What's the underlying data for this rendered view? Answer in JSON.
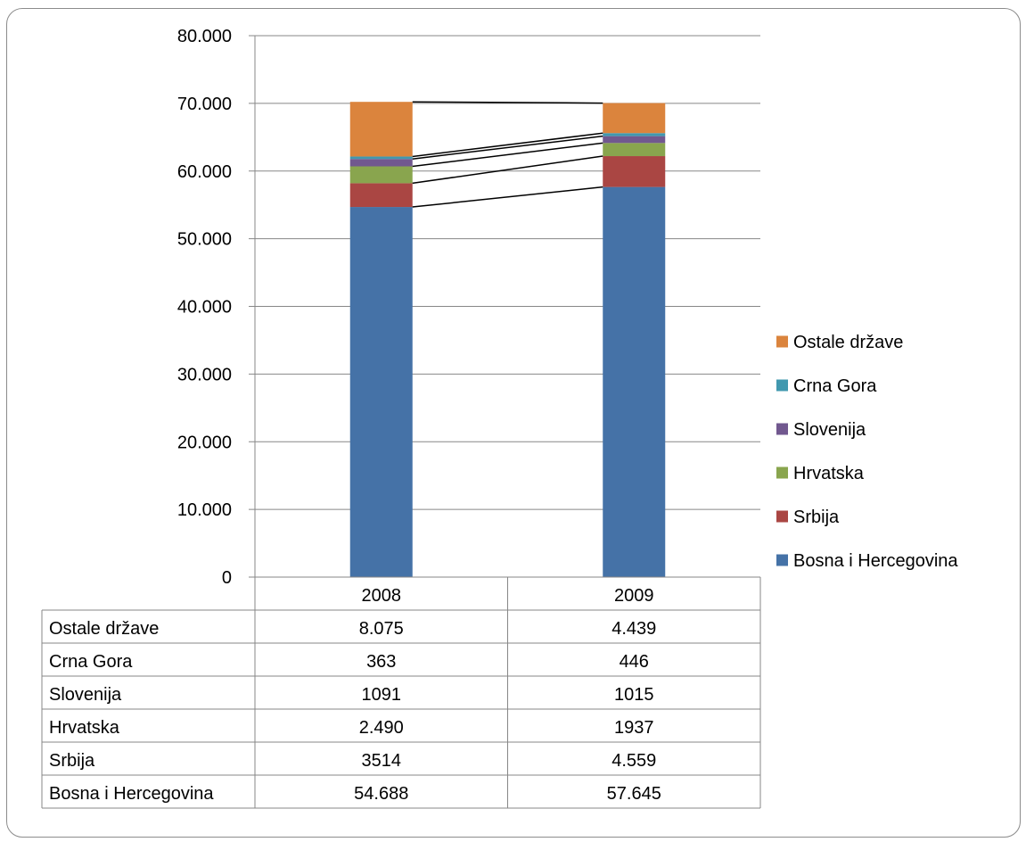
{
  "chart_data": {
    "type": "bar",
    "stacked": true,
    "categories": [
      "2008",
      "2009"
    ],
    "series": [
      {
        "name": "Bosna i Hercegovina",
        "color": "#4572a7",
        "values": [
          54688,
          57645
        ],
        "labels": [
          "54.688",
          "57.645"
        ]
      },
      {
        "name": "Srbija",
        "color": "#aa4643",
        "values": [
          3514,
          4559
        ],
        "labels": [
          "3514",
          "4.559"
        ]
      },
      {
        "name": "Hrvatska",
        "color": "#89a54e",
        "values": [
          2490,
          1937
        ],
        "labels": [
          "2.490",
          "1937"
        ]
      },
      {
        "name": "Slovenija",
        "color": "#71588f",
        "values": [
          1091,
          1015
        ],
        "labels": [
          "1091",
          "1015"
        ]
      },
      {
        "name": "Crna Gora",
        "color": "#4198af",
        "values": [
          363,
          446
        ],
        "labels": [
          "363",
          "446"
        ]
      },
      {
        "name": "Ostale države",
        "color": "#db843d",
        "values": [
          8075,
          4439
        ],
        "labels": [
          "8.075",
          "4.439"
        ]
      }
    ],
    "ylim": [
      0,
      80000
    ],
    "yticks": [
      0,
      10000,
      20000,
      30000,
      40000,
      50000,
      60000,
      70000,
      80000
    ],
    "ytick_labels": [
      "0",
      "10.000",
      "20.000",
      "30.000",
      "40.000",
      "50.000",
      "60.000",
      "70.000",
      "80.000"
    ],
    "grid": true,
    "series_lines": true,
    "legend_position": "right",
    "data_table": true,
    "title": "",
    "xlabel": "",
    "ylabel": ""
  }
}
